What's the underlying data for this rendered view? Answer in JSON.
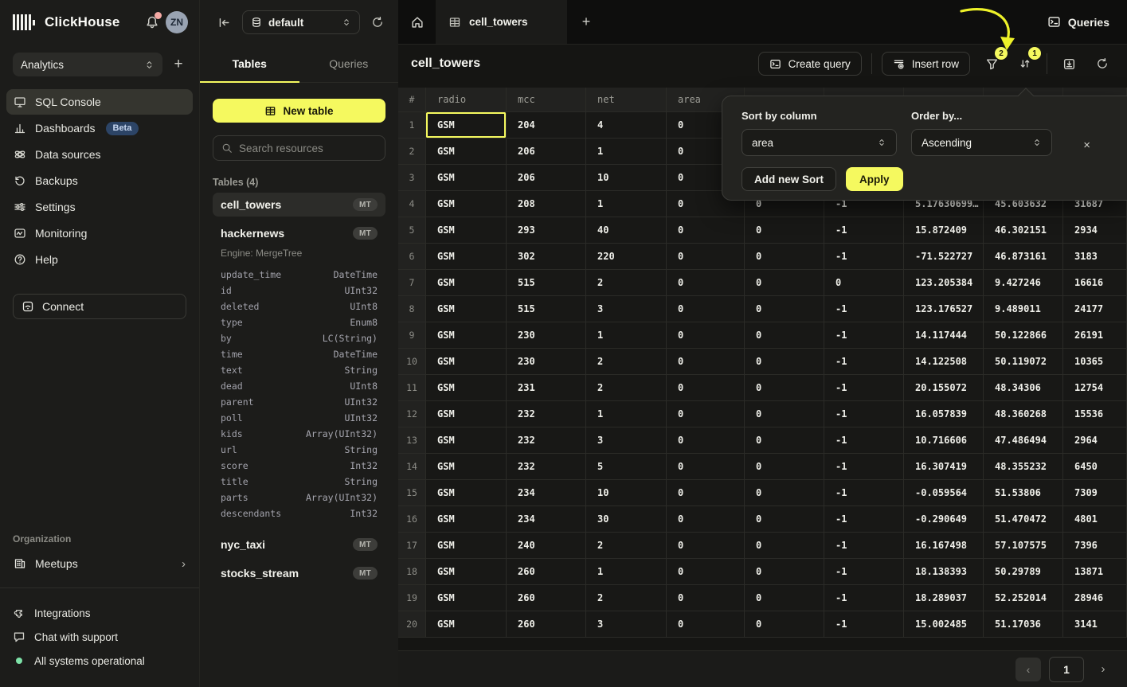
{
  "app": {
    "brand": "ClickHouse",
    "avatar_initials": "ZN",
    "workspace": "Analytics"
  },
  "colors": {
    "accent": "#f5f95f",
    "beta_badge": "#2c4466",
    "status_green": "#7ee2a8",
    "notification_dot": "#f4a9a4",
    "annotation_yellow": "#eef229"
  },
  "sidebar": {
    "items": [
      {
        "label": "SQL Console",
        "icon": "sql-console-icon",
        "active": true
      },
      {
        "label": "Dashboards",
        "icon": "dashboards-icon",
        "badge": "Beta"
      },
      {
        "label": "Data sources",
        "icon": "data-sources-icon"
      },
      {
        "label": "Backups",
        "icon": "backups-icon"
      },
      {
        "label": "Settings",
        "icon": "settings-icon"
      },
      {
        "label": "Monitoring",
        "icon": "monitoring-icon"
      },
      {
        "label": "Help",
        "icon": "help-icon"
      }
    ],
    "connect_label": "Connect",
    "organization_label": "Organization",
    "meetups_label": "Meetups",
    "footer_items": [
      {
        "label": "Integrations",
        "icon": "integrations-icon"
      },
      {
        "label": "Chat with support",
        "icon": "chat-icon"
      },
      {
        "label": "All systems operational",
        "icon": "status-dot"
      }
    ]
  },
  "browser": {
    "database": "default",
    "tabs": [
      "Tables",
      "Queries"
    ],
    "active_tab": "Tables",
    "new_table_label": "New table",
    "search_placeholder": "Search resources",
    "section_label": "Tables (4)",
    "tables": [
      {
        "name": "cell_towers",
        "badge": "MT",
        "selected": true
      },
      {
        "name": "hackernews",
        "badge": "MT",
        "engine": "Engine: MergeTree",
        "columns": [
          [
            "update_time",
            "DateTime"
          ],
          [
            "id",
            "UInt32"
          ],
          [
            "deleted",
            "UInt8"
          ],
          [
            "type",
            "Enum8"
          ],
          [
            "by",
            "LC(String)"
          ],
          [
            "time",
            "DateTime"
          ],
          [
            "text",
            "String"
          ],
          [
            "dead",
            "UInt8"
          ],
          [
            "parent",
            "UInt32"
          ],
          [
            "poll",
            "UInt32"
          ],
          [
            "kids",
            "Array(UInt32)"
          ],
          [
            "url",
            "String"
          ],
          [
            "score",
            "Int32"
          ],
          [
            "title",
            "String"
          ],
          [
            "parts",
            "Array(UInt32)"
          ],
          [
            "descendants",
            "Int32"
          ]
        ]
      },
      {
        "name": "nyc_taxi",
        "badge": "MT"
      },
      {
        "name": "stocks_stream",
        "badge": "MT"
      }
    ]
  },
  "main": {
    "tab_title": "cell_towers",
    "queries_label": "Queries",
    "title": "cell_towers",
    "create_query_label": "Create query",
    "insert_row_label": "Insert row",
    "filter_badge": "2",
    "sort_badge": "1",
    "grid": {
      "columns": [
        "#",
        "radio",
        "mcc",
        "net",
        "area",
        "",
        "",
        "",
        "",
        ""
      ],
      "rows": [
        [
          "GSM",
          "204",
          "4",
          "0",
          "",
          "",
          "",
          "",
          ""
        ],
        [
          "GSM",
          "206",
          "1",
          "0",
          "",
          "",
          "",
          "",
          ""
        ],
        [
          "GSM",
          "206",
          "10",
          "0",
          "",
          "",
          "",
          "",
          ""
        ],
        [
          "GSM",
          "208",
          "1",
          "0",
          "0",
          "-1",
          "5.17630699…",
          "45.603632",
          "31687"
        ],
        [
          "GSM",
          "293",
          "40",
          "0",
          "0",
          "-1",
          "15.872409",
          "46.302151",
          "2934"
        ],
        [
          "GSM",
          "302",
          "220",
          "0",
          "0",
          "-1",
          "-71.522727",
          "46.873161",
          "3183"
        ],
        [
          "GSM",
          "515",
          "2",
          "0",
          "0",
          "0",
          "123.205384",
          "9.427246",
          "16616"
        ],
        [
          "GSM",
          "515",
          "3",
          "0",
          "0",
          "-1",
          "123.176527",
          "9.489011",
          "24177"
        ],
        [
          "GSM",
          "230",
          "1",
          "0",
          "0",
          "-1",
          "14.117444",
          "50.122866",
          "26191"
        ],
        [
          "GSM",
          "230",
          "2",
          "0",
          "0",
          "-1",
          "14.122508",
          "50.119072",
          "10365"
        ],
        [
          "GSM",
          "231",
          "2",
          "0",
          "0",
          "-1",
          "20.155072",
          "48.34306",
          "12754"
        ],
        [
          "GSM",
          "232",
          "1",
          "0",
          "0",
          "-1",
          "16.057839",
          "48.360268",
          "15536"
        ],
        [
          "GSM",
          "232",
          "3",
          "0",
          "0",
          "-1",
          "10.716606",
          "47.486494",
          "2964"
        ],
        [
          "GSM",
          "232",
          "5",
          "0",
          "0",
          "-1",
          "16.307419",
          "48.355232",
          "6450"
        ],
        [
          "GSM",
          "234",
          "10",
          "0",
          "0",
          "-1",
          "-0.059564",
          "51.53806",
          "7309"
        ],
        [
          "GSM",
          "234",
          "30",
          "0",
          "0",
          "-1",
          "-0.290649",
          "51.470472",
          "4801"
        ],
        [
          "GSM",
          "240",
          "2",
          "0",
          "0",
          "-1",
          "16.167498",
          "57.107575",
          "7396"
        ],
        [
          "GSM",
          "260",
          "1",
          "0",
          "0",
          "-1",
          "18.138393",
          "50.29789",
          "13871"
        ],
        [
          "GSM",
          "260",
          "2",
          "0",
          "0",
          "-1",
          "18.289037",
          "52.252014",
          "28946"
        ],
        [
          "GSM",
          "260",
          "3",
          "0",
          "0",
          "-1",
          "15.002485",
          "51.17036",
          "3141"
        ]
      ],
      "selected_cell": {
        "row": 0,
        "col": 1
      }
    },
    "pagination": {
      "page": "1",
      "prev": "‹",
      "next": "›"
    }
  },
  "sort_popup": {
    "column_label": "Sort by column",
    "column_value": "area",
    "order_label": "Order by...",
    "order_value": "Ascending",
    "close_glyph": "×",
    "add_label": "Add new Sort",
    "apply_label": "Apply"
  }
}
